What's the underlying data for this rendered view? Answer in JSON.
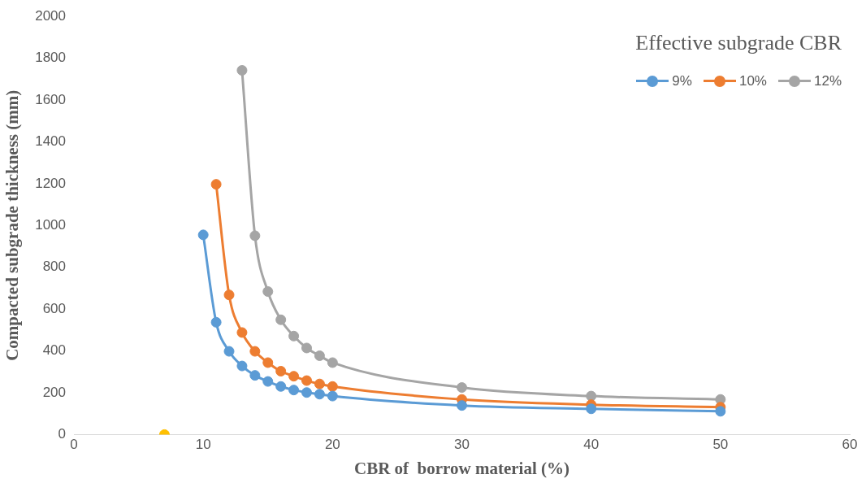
{
  "chart_data": {
    "type": "line",
    "xlabel": "CBR of  borrow material (%)",
    "ylabel": "Compacted subgrade thickness (mm)",
    "legend_title": "Effective subgrade CBR",
    "legend": "top right",
    "marker": "circle",
    "line_style": "solid",
    "grid": false,
    "xlim": [
      0,
      60
    ],
    "xticks": [
      0,
      10,
      20,
      30,
      40,
      50,
      60
    ],
    "ylim": [
      0,
      2000
    ],
    "yticks": [
      0,
      200,
      400,
      600,
      800,
      1000,
      1200,
      1400,
      1600,
      1800,
      2000
    ],
    "series": [
      {
        "name": "9%",
        "color": "#5b9bd5",
        "x": [
          10,
          11,
          12,
          13,
          14,
          15,
          16,
          17,
          18,
          19,
          20,
          30,
          40,
          50
        ],
        "values": [
          955,
          537,
          398,
          328,
          283,
          254,
          230,
          213,
          201,
          193,
          184,
          139,
          123,
          111
        ]
      },
      {
        "name": "10%",
        "color": "#ed7d31",
        "x": [
          11,
          12,
          13,
          14,
          15,
          16,
          17,
          18,
          19,
          20,
          30,
          40,
          50
        ],
        "values": [
          1197,
          668,
          488,
          398,
          344,
          303,
          279,
          258,
          242,
          230,
          168,
          143,
          131
        ]
      },
      {
        "name": "12%",
        "color": "#a5a5a5",
        "x": [
          13,
          14,
          15,
          16,
          17,
          18,
          19,
          20,
          30,
          40,
          50
        ],
        "values": [
          1742,
          951,
          684,
          549,
          471,
          414,
          377,
          344,
          225,
          184,
          168
        ]
      },
      {
        "type": "scatter",
        "color": "#ffc000",
        "x": [
          7
        ],
        "values": [
          0
        ]
      }
    ]
  }
}
